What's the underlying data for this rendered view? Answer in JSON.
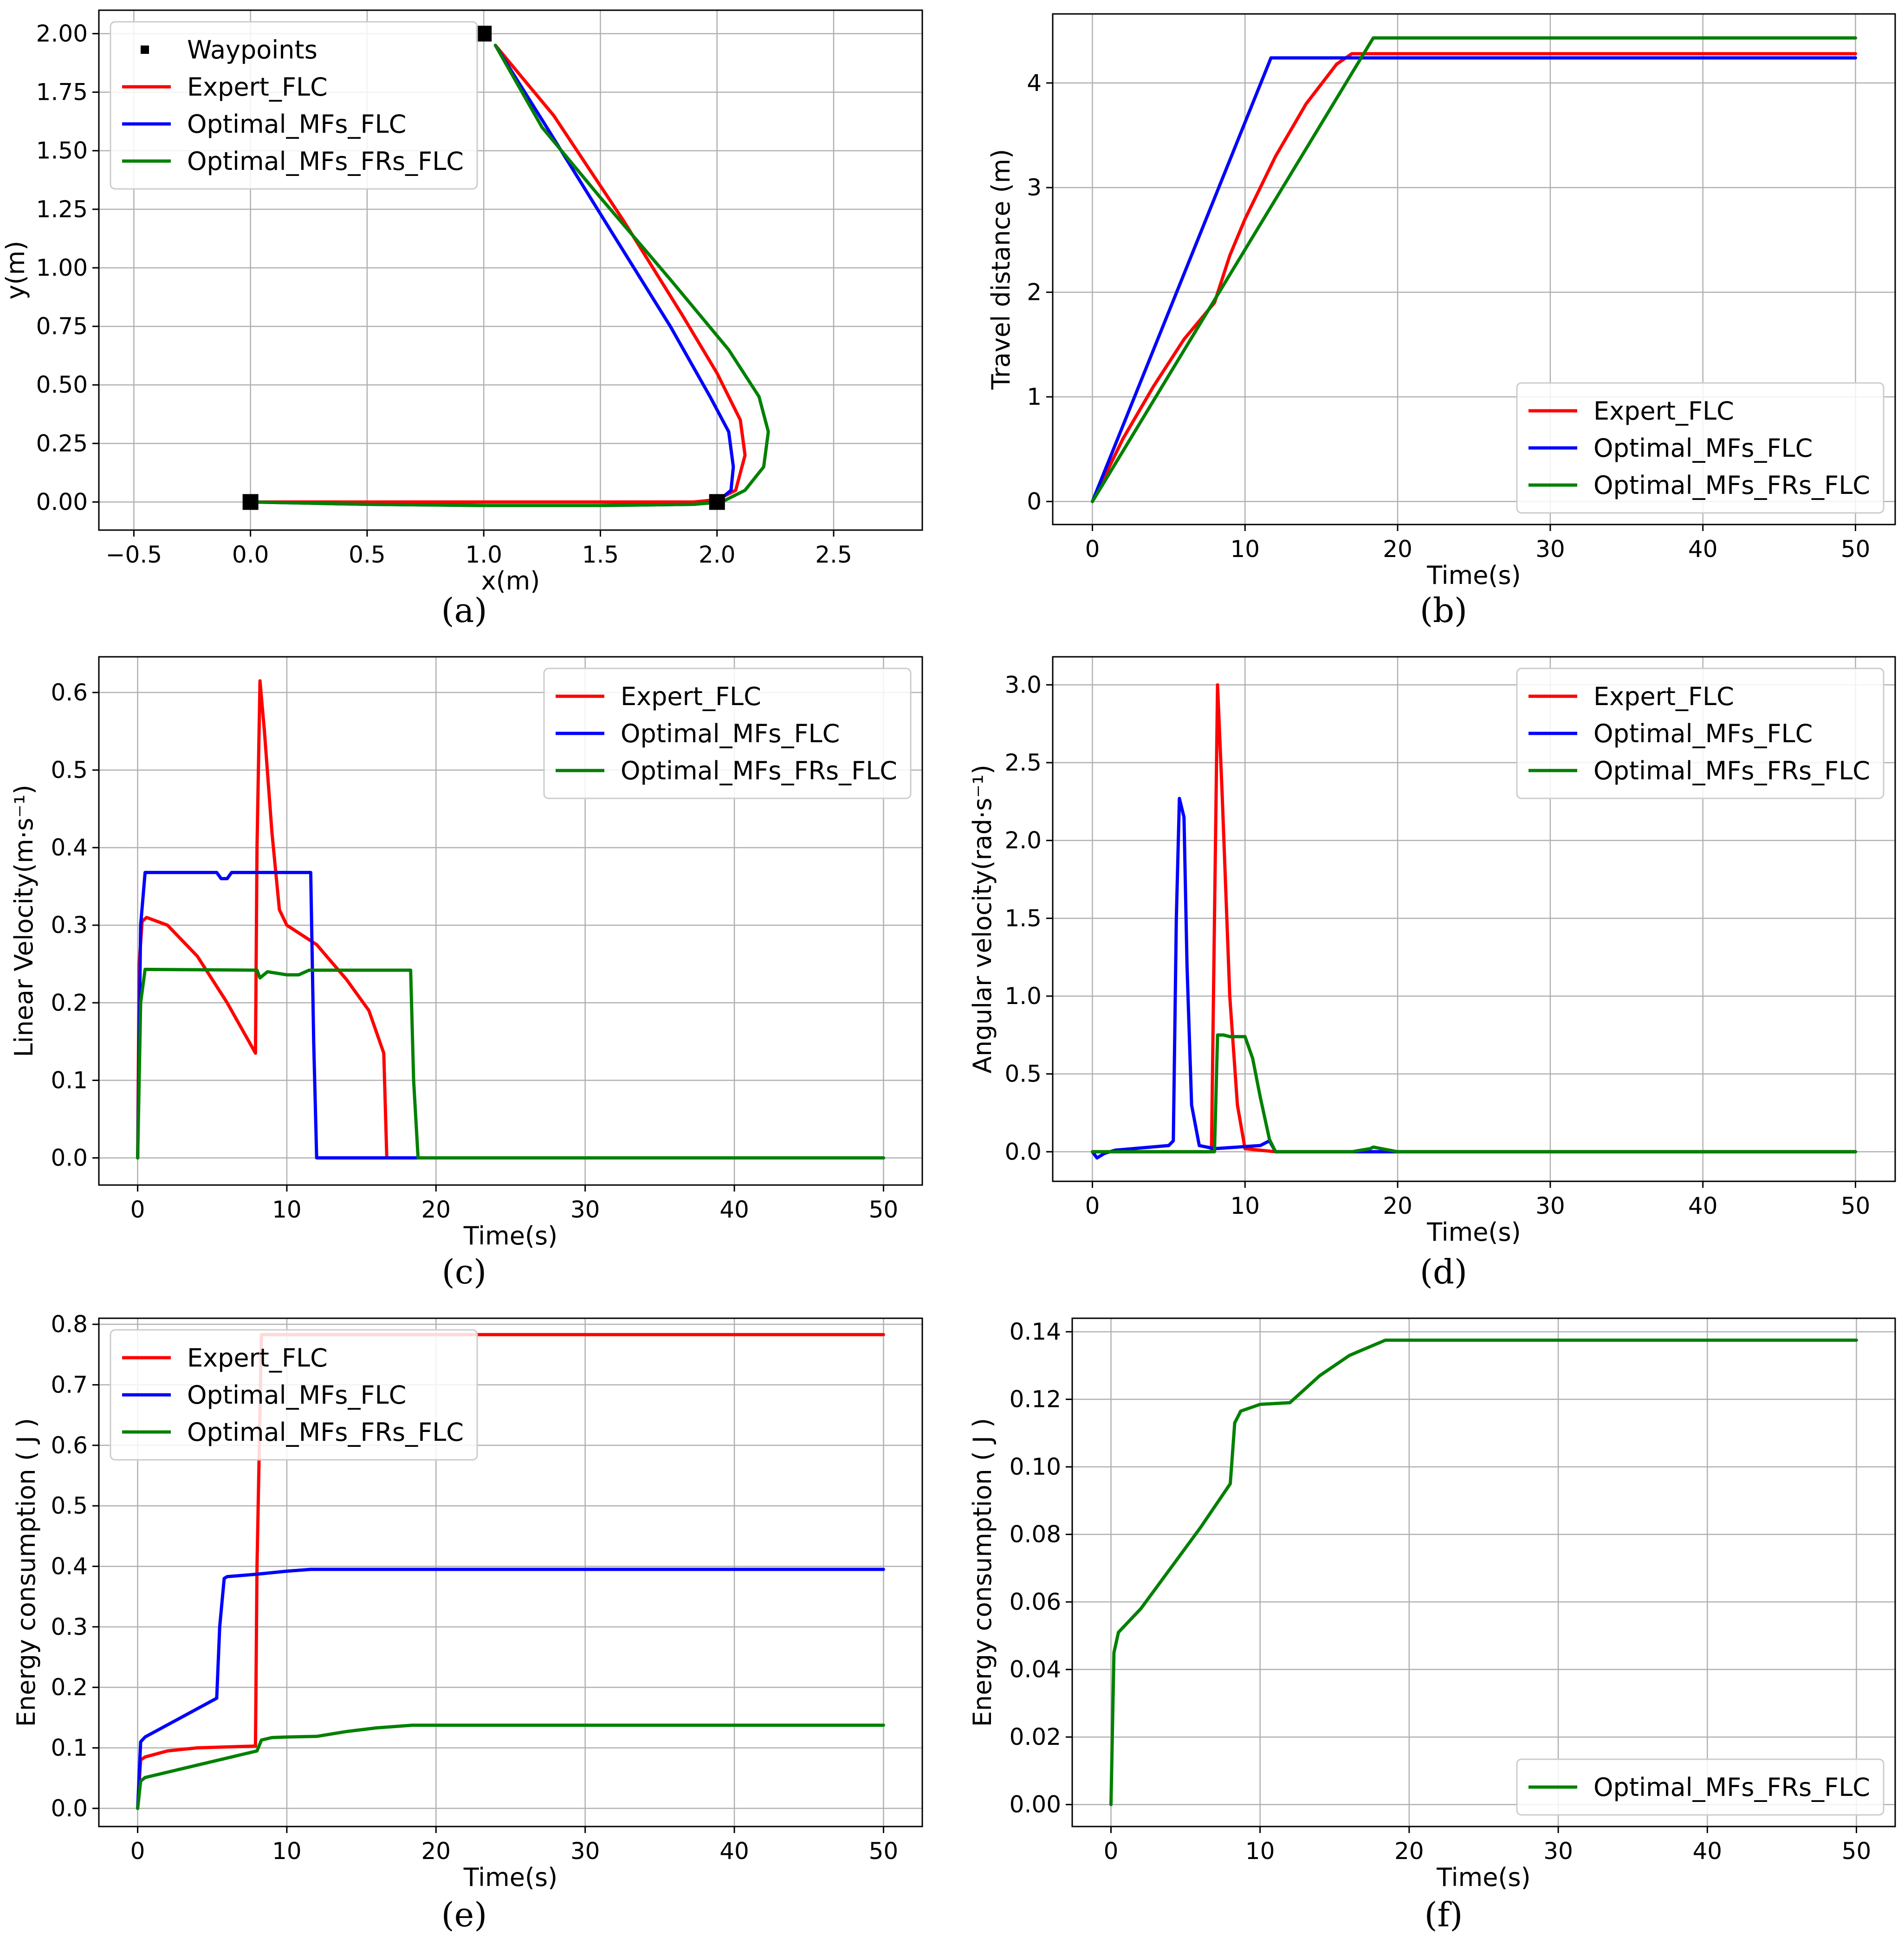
{
  "colors": {
    "expert": "#ff0000",
    "optimal_mfs": "#0000ff",
    "optimal_mfs_frs": "#008000",
    "waypoint": "#000000"
  },
  "chart_data": [
    {
      "id": "a",
      "caption": "(a)",
      "type": "line",
      "xlabel": "x(m)",
      "ylabel": "y(m)",
      "xlim": [
        -0.65,
        2.88
      ],
      "ylim": [
        -0.12,
        2.1
      ],
      "xticks": [
        -0.5,
        0.0,
        0.5,
        1.0,
        1.5,
        2.0,
        2.5
      ],
      "xtick_labels": [
        "−0.5",
        "0.0",
        "0.5",
        "1.0",
        "1.5",
        "2.0",
        "2.5"
      ],
      "yticks": [
        0.0,
        0.25,
        0.5,
        0.75,
        1.0,
        1.25,
        1.5,
        1.75,
        2.0
      ],
      "ytick_labels": [
        "0.00",
        "0.25",
        "0.50",
        "0.75",
        "1.00",
        "1.25",
        "1.50",
        "1.75",
        "2.00"
      ],
      "legend": "top-left",
      "waypoints": {
        "name": "Waypoints",
        "x": [
          0.0,
          2.0,
          1.0
        ],
        "y": [
          0.0,
          0.0,
          2.0
        ]
      },
      "series": [
        {
          "name": "Expert_FLC",
          "color": "#ff0000",
          "x": [
            0.0,
            0.5,
            1.0,
            1.5,
            1.9,
            2.0,
            2.08,
            2.12,
            2.1,
            2.0,
            1.85,
            1.6,
            1.3,
            1.05
          ],
          "y": [
            0.0,
            0.0,
            0.0,
            0.0,
            0.0,
            0.01,
            0.05,
            0.2,
            0.35,
            0.55,
            0.8,
            1.2,
            1.65,
            1.95
          ]
        },
        {
          "name": "Optimal_MFs_FLC",
          "color": "#0000ff",
          "x": [
            0.0,
            0.5,
            1.0,
            1.5,
            1.9,
            2.0,
            2.06,
            2.07,
            2.05,
            1.97,
            1.8,
            1.55,
            1.27,
            1.05
          ],
          "y": [
            0.0,
            -0.01,
            -0.015,
            -0.015,
            -0.01,
            0.0,
            0.05,
            0.15,
            0.3,
            0.45,
            0.75,
            1.15,
            1.6,
            1.95
          ]
        },
        {
          "name": "Optimal_MFs_FRs_FLC",
          "color": "#008000",
          "x": [
            0.0,
            0.5,
            1.0,
            1.5,
            1.9,
            2.02,
            2.12,
            2.2,
            2.22,
            2.18,
            2.05,
            1.8,
            1.5,
            1.25,
            1.05
          ],
          "y": [
            0.0,
            -0.01,
            -0.015,
            -0.015,
            -0.01,
            0.0,
            0.05,
            0.15,
            0.3,
            0.45,
            0.65,
            0.95,
            1.3,
            1.6,
            1.95
          ]
        }
      ]
    },
    {
      "id": "b",
      "caption": "(b)",
      "type": "line",
      "xlabel": "Time(s)",
      "ylabel": "Travel distance (m)",
      "xlim": [
        -2.6,
        52.6
      ],
      "ylim": [
        -0.22,
        4.66
      ],
      "xticks": [
        0,
        10,
        20,
        30,
        40,
        50
      ],
      "xtick_labels": [
        "0",
        "10",
        "20",
        "30",
        "40",
        "50"
      ],
      "yticks": [
        0,
        1,
        2,
        3,
        4
      ],
      "ytick_labels": [
        "0",
        "1",
        "2",
        "3",
        "4"
      ],
      "legend": "bottom-right",
      "series": [
        {
          "name": "Expert_FLC",
          "color": "#ff0000",
          "x": [
            0,
            2,
            4,
            6,
            8,
            9,
            10,
            12,
            14,
            16,
            17,
            20,
            30,
            40,
            50
          ],
          "y": [
            0,
            0.6,
            1.1,
            1.55,
            1.9,
            2.35,
            2.7,
            3.3,
            3.8,
            4.18,
            4.28,
            4.28,
            4.28,
            4.28,
            4.28
          ]
        },
        {
          "name": "Optimal_MFs_FLC",
          "color": "#0000ff",
          "x": [
            0,
            11.7,
            20,
            30,
            40,
            50
          ],
          "y": [
            0,
            4.24,
            4.24,
            4.24,
            4.24,
            4.24
          ]
        },
        {
          "name": "Optimal_MFs_FRs_FLC",
          "color": "#008000",
          "x": [
            0,
            18.4,
            20,
            30,
            40,
            50
          ],
          "y": [
            0,
            4.43,
            4.43,
            4.43,
            4.43,
            4.43
          ]
        }
      ]
    },
    {
      "id": "c",
      "caption": "(c)",
      "type": "line",
      "xlabel": "Time(s)",
      "ylabel": "Linear Velocity(m·s⁻¹)",
      "xlim": [
        -2.6,
        52.6
      ],
      "ylim": [
        -0.035,
        0.646
      ],
      "xticks": [
        0,
        10,
        20,
        30,
        40,
        50
      ],
      "xtick_labels": [
        "0",
        "10",
        "20",
        "30",
        "40",
        "50"
      ],
      "yticks": [
        0.0,
        0.1,
        0.2,
        0.3,
        0.4,
        0.5,
        0.6
      ],
      "ytick_labels": [
        "0.0",
        "0.1",
        "0.2",
        "0.3",
        "0.4",
        "0.5",
        "0.6"
      ],
      "legend": "top-right",
      "series": [
        {
          "name": "Expert_FLC",
          "color": "#ff0000",
          "x": [
            0,
            0.1,
            0.3,
            0.6,
            2,
            4,
            6,
            7.9,
            8.0,
            8.2,
            8.5,
            9.0,
            9.5,
            10,
            12,
            14,
            15.5,
            16.5,
            16.7,
            16.8,
            20,
            30,
            40,
            50
          ],
          "y": [
            0,
            0.25,
            0.305,
            0.31,
            0.3,
            0.26,
            0.2,
            0.135,
            0.4,
            0.615,
            0.55,
            0.42,
            0.32,
            0.3,
            0.275,
            0.23,
            0.19,
            0.135,
            0.0,
            0.0,
            0.0,
            0.0,
            0.0,
            0.0
          ]
        },
        {
          "name": "Optimal_MFs_FLC",
          "color": "#0000ff",
          "x": [
            0,
            0.2,
            0.5,
            5.3,
            5.6,
            6.0,
            6.3,
            11.6,
            11.8,
            12.0,
            20,
            30,
            40,
            50
          ],
          "y": [
            0,
            0.3,
            0.368,
            0.368,
            0.36,
            0.36,
            0.368,
            0.368,
            0.15,
            0.0,
            0.0,
            0.0,
            0.0,
            0.0
          ]
        },
        {
          "name": "Optimal_MFs_FRs_FLC",
          "color": "#008000",
          "x": [
            0,
            0.2,
            0.5,
            8.0,
            8.2,
            8.7,
            10.0,
            10.8,
            11.5,
            18.3,
            18.5,
            18.8,
            20,
            30,
            40,
            50
          ],
          "y": [
            0,
            0.2,
            0.243,
            0.242,
            0.232,
            0.24,
            0.236,
            0.236,
            0.242,
            0.242,
            0.1,
            0.0,
            0.0,
            0.0,
            0.0,
            0.0
          ]
        }
      ]
    },
    {
      "id": "d",
      "caption": "(d)",
      "type": "line",
      "xlabel": "Time(s)",
      "ylabel": "Angular velocity(rad·s⁻¹)",
      "xlim": [
        -2.6,
        52.6
      ],
      "ylim": [
        -0.19,
        3.18
      ],
      "xticks": [
        0,
        10,
        20,
        30,
        40,
        50
      ],
      "xtick_labels": [
        "0",
        "10",
        "20",
        "30",
        "40",
        "50"
      ],
      "yticks": [
        0.0,
        0.5,
        1.0,
        1.5,
        2.0,
        2.5,
        3.0
      ],
      "ytick_labels": [
        "0.0",
        "0.5",
        "1.0",
        "1.5",
        "2.0",
        "2.5",
        "3.0"
      ],
      "legend": "top-right",
      "series": [
        {
          "name": "Expert_FLC",
          "color": "#ff0000",
          "x": [
            0,
            7.8,
            8.0,
            8.2,
            8.5,
            9.0,
            9.5,
            10.0,
            12,
            20,
            30,
            40,
            50
          ],
          "y": [
            0,
            0,
            1.5,
            3.0,
            2.3,
            1.0,
            0.3,
            0.02,
            0,
            0,
            0,
            0,
            0
          ]
        },
        {
          "name": "Optimal_MFs_FLC",
          "color": "#0000ff",
          "x": [
            0,
            0.3,
            0.8,
            1.5,
            5.0,
            5.3,
            5.5,
            5.7,
            6.0,
            6.2,
            6.5,
            7.0,
            8.0,
            11.0,
            11.6,
            12.0,
            20,
            30,
            40,
            50
          ],
          "y": [
            0,
            -0.04,
            -0.01,
            0.01,
            0.04,
            0.07,
            1.5,
            2.27,
            2.15,
            1.2,
            0.3,
            0.04,
            0.02,
            0.04,
            0.07,
            0.0,
            0,
            0,
            0,
            0
          ]
        },
        {
          "name": "Optimal_MFs_FRs_FLC",
          "color": "#008000",
          "x": [
            0,
            8.0,
            8.2,
            8.6,
            9.0,
            10.0,
            10.5,
            11.0,
            11.6,
            12.0,
            17.0,
            18.2,
            18.4,
            20,
            30,
            40,
            50
          ],
          "y": [
            0,
            0,
            0.75,
            0.75,
            0.74,
            0.74,
            0.6,
            0.35,
            0.08,
            0,
            0,
            0.02,
            0.03,
            0,
            0,
            0,
            0
          ]
        }
      ]
    },
    {
      "id": "e",
      "caption": "(e)",
      "type": "line",
      "xlabel": "Time(s)",
      "ylabel": "Energy consumption ( J )",
      "xlim": [
        -2.6,
        52.6
      ],
      "ylim": [
        -0.03,
        0.81
      ],
      "xticks": [
        0,
        10,
        20,
        30,
        40,
        50
      ],
      "xtick_labels": [
        "0",
        "10",
        "20",
        "30",
        "40",
        "50"
      ],
      "yticks": [
        0.0,
        0.1,
        0.2,
        0.3,
        0.4,
        0.5,
        0.6,
        0.7,
        0.8
      ],
      "ytick_labels": [
        "0.0",
        "0.1",
        "0.2",
        "0.3",
        "0.4",
        "0.5",
        "0.6",
        "0.7",
        "0.8"
      ],
      "legend": "top-left",
      "series": [
        {
          "name": "Expert_FLC",
          "color": "#ff0000",
          "x": [
            0,
            0.2,
            0.5,
            2,
            4,
            7.9,
            8.0,
            8.3,
            10,
            20,
            30,
            40,
            50
          ],
          "y": [
            0,
            0.08,
            0.085,
            0.095,
            0.1,
            0.103,
            0.4,
            0.783,
            0.783,
            0.783,
            0.783,
            0.783,
            0.783
          ]
        },
        {
          "name": "Optimal_MFs_FLC",
          "color": "#0000ff",
          "x": [
            0,
            0.2,
            0.5,
            5.3,
            5.5,
            5.8,
            6.0,
            8.0,
            10,
            11.6,
            12,
            20,
            30,
            40,
            50
          ],
          "y": [
            0,
            0.11,
            0.118,
            0.182,
            0.3,
            0.38,
            0.383,
            0.387,
            0.392,
            0.395,
            0.395,
            0.395,
            0.395,
            0.395,
            0.395
          ]
        },
        {
          "name": "Optimal_MFs_FRs_FLC",
          "color": "#008000",
          "x": [
            0,
            0.2,
            0.5,
            8.0,
            8.3,
            9.0,
            10,
            12,
            14,
            16,
            18.4,
            20,
            30,
            40,
            50
          ],
          "y": [
            0,
            0.045,
            0.051,
            0.095,
            0.113,
            0.117,
            0.118,
            0.119,
            0.127,
            0.133,
            0.1375,
            0.1375,
            0.1375,
            0.1375,
            0.1375
          ]
        }
      ]
    },
    {
      "id": "f",
      "caption": "(f)",
      "type": "line",
      "xlabel": "Time(s)",
      "ylabel": "Energy consumption ( J )",
      "xlim": [
        -2.6,
        52.6
      ],
      "ylim": [
        -0.0065,
        0.144
      ],
      "xticks": [
        0,
        10,
        20,
        30,
        40,
        50
      ],
      "xtick_labels": [
        "0",
        "10",
        "20",
        "30",
        "40",
        "50"
      ],
      "yticks": [
        0.0,
        0.02,
        0.04,
        0.06,
        0.08,
        0.1,
        0.12,
        0.14
      ],
      "ytick_labels": [
        "0.00",
        "0.02",
        "0.04",
        "0.06",
        "0.08",
        "0.10",
        "0.12",
        "0.14"
      ],
      "legend": "bottom-right",
      "series": [
        {
          "name": "Optimal_MFs_FRs_FLC",
          "color": "#008000",
          "x": [
            0,
            0.2,
            0.5,
            2,
            4,
            6,
            8.0,
            8.3,
            8.7,
            10,
            12,
            14,
            16,
            18.4,
            20,
            30,
            40,
            50
          ],
          "y": [
            0,
            0.045,
            0.051,
            0.058,
            0.07,
            0.082,
            0.095,
            0.113,
            0.1165,
            0.1185,
            0.119,
            0.127,
            0.133,
            0.1375,
            0.1375,
            0.1375,
            0.1375,
            0.1375
          ]
        }
      ]
    }
  ]
}
